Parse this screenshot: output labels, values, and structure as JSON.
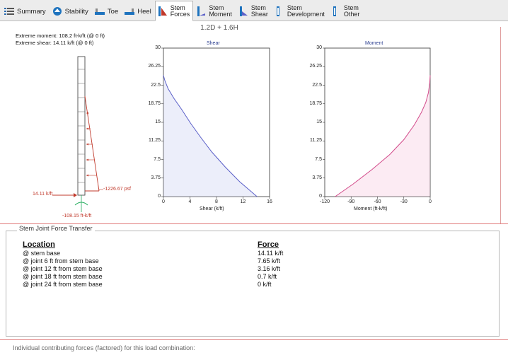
{
  "toolbar": {
    "tabs": [
      {
        "label": "Summary",
        "icon": "summary-icon",
        "lines": [
          "Summary"
        ]
      },
      {
        "label": "Stability",
        "icon": "stability-icon",
        "lines": [
          "Stability"
        ]
      },
      {
        "label": "Toe",
        "icon": "toe-icon",
        "lines": [
          "Toe"
        ]
      },
      {
        "label": "Heel",
        "icon": "heel-icon",
        "lines": [
          "Heel"
        ]
      },
      {
        "label": "Stem Forces",
        "icon": "stem-forces-icon",
        "lines": [
          "Stem",
          "Forces"
        ],
        "active": true
      },
      {
        "label": "Stem Moment",
        "icon": "stem-moment-icon",
        "lines": [
          "Stem",
          "Moment"
        ]
      },
      {
        "label": "Stem Shear",
        "icon": "stem-shear-icon",
        "lines": [
          "Stem",
          "Shear"
        ]
      },
      {
        "label": "Stem Development",
        "icon": "stem-development-icon",
        "lines": [
          "Stem",
          "Development"
        ]
      },
      {
        "label": "Stem Other",
        "icon": "stem-other-icon",
        "lines": [
          "Stem",
          "Other"
        ]
      }
    ]
  },
  "load_combination": "1.2D + 1.6H",
  "extremes": {
    "moment": "Extreme moment:  108.2 ft-k/ft  (@ 0 ft)",
    "shear": "Extreme shear:  14.11 k/ft  (@ 0 ft)"
  },
  "stem_diagram": {
    "base_force_label": "14.11 k/ft",
    "pressure_label": "-1226.67 psf",
    "moment_label": "-108.15 ft-k/ft"
  },
  "chart_data": [
    {
      "type": "line",
      "title": "Shear",
      "xlabel": "Shear (k/ft)",
      "ylabel": "",
      "xlim": [
        0,
        16
      ],
      "ylim": [
        0,
        30
      ],
      "x_ticks": [
        "0",
        "4",
        "8",
        "12",
        "16"
      ],
      "y_ticks": [
        "0",
        "3.75",
        "7.5",
        "11.25",
        "15",
        "18.75",
        "22.5",
        "26.25",
        "30"
      ],
      "series": [
        {
          "color": "#5a5fc8",
          "points": [
            [
              14.11,
              0
            ],
            [
              11.5,
              3
            ],
            [
              9.3,
              6
            ],
            [
              7.3,
              9
            ],
            [
              5.6,
              12
            ],
            [
              4.1,
              14.8
            ],
            [
              2.8,
              17.5
            ],
            [
              1.6,
              19.8
            ],
            [
              0.7,
              21.8
            ],
            [
              0.2,
              23.5
            ],
            [
              0,
              24.5
            ]
          ]
        }
      ]
    },
    {
      "type": "line",
      "title": "Moment",
      "xlabel": "Moment (ft-k/ft)",
      "ylabel": "",
      "xlim": [
        -120,
        0
      ],
      "ylim": [
        0,
        30
      ],
      "x_ticks": [
        "-120",
        "-90",
        "-60",
        "-30",
        "0"
      ],
      "y_ticks": [
        "0",
        "3.75",
        "7.5",
        "11.25",
        "15",
        "18.75",
        "22.5",
        "26.25",
        "30"
      ],
      "series": [
        {
          "color": "#d24a8a",
          "points": [
            [
              -108.2,
              0
            ],
            [
              -88,
              2.5
            ],
            [
              -66,
              5.5
            ],
            [
              -46,
              8.5
            ],
            [
              -30,
              11.5
            ],
            [
              -18,
              14.5
            ],
            [
              -10,
              17
            ],
            [
              -5,
              19
            ],
            [
              -2,
              21
            ],
            [
              -0.5,
              23
            ],
            [
              0,
              24.5
            ]
          ]
        }
      ]
    }
  ],
  "joint_forces": {
    "group_title": "Stem Joint Force Transfer",
    "location_header": "Location",
    "force_header": "Force",
    "rows": [
      {
        "location": "@ stem base",
        "force": "14.11 k/ft"
      },
      {
        "location": "@ joint 6 ft from stem base",
        "force": "7.65 k/ft"
      },
      {
        "location": "@ joint 12 ft from stem base",
        "force": "3.16 k/ft"
      },
      {
        "location": "@ joint 18 ft from stem base",
        "force": "0.7 k/ft"
      },
      {
        "location": "@ joint 24 ft from stem base",
        "force": "0 k/ft"
      }
    ]
  },
  "footer": {
    "text": "Individual contributing forces (factored) for this load combination:"
  },
  "colors": {
    "stem_red": "#c0392b",
    "shear_line": "#5a5fc8",
    "moment_line": "#d24a8a",
    "separator": "#e07b7b"
  }
}
